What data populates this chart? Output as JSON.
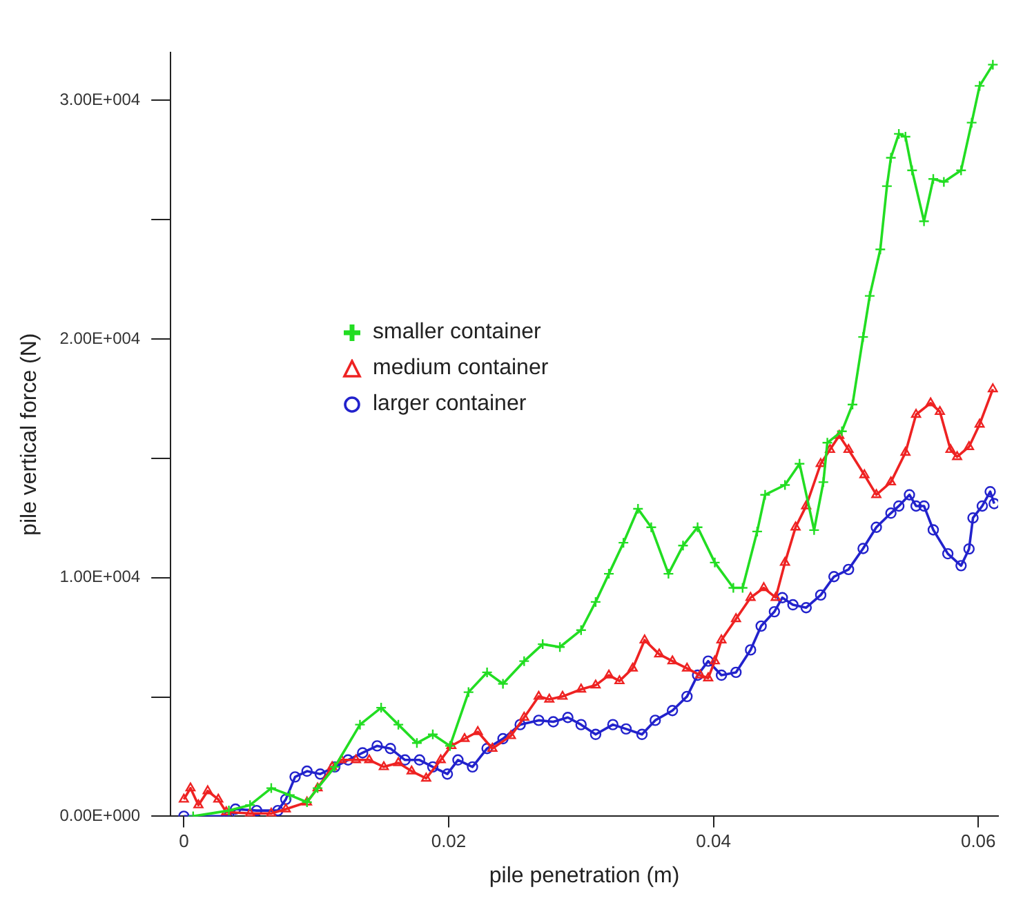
{
  "chart_data": {
    "type": "line",
    "xlabel": "pile penetration (m)",
    "ylabel": "pile vertical force (N)",
    "xlim": [
      -0.001,
      0.0615
    ],
    "xticks": [
      0,
      0.02,
      0.04,
      0.06
    ],
    "ylim": [
      0,
      32000
    ],
    "yticks": [
      {
        "value": 0,
        "label": "0.00E+000"
      },
      {
        "value": 5000,
        "label": null
      },
      {
        "value": 10000,
        "label": "1.00E+004"
      },
      {
        "value": 15000,
        "label": null
      },
      {
        "value": 20000,
        "label": "2.00E+004"
      },
      {
        "value": 25000,
        "label": null
      },
      {
        "value": 30000,
        "label": "3.00E+004"
      }
    ],
    "grid": false,
    "legend": "left",
    "line_style": "solid",
    "series": [
      {
        "name": "smaller container",
        "color": "#22dd22",
        "marker": "cross",
        "x": [
          0.0007,
          0.0034,
          0.005,
          0.0066,
          0.008,
          0.0093,
          0.0101,
          0.0114,
          0.0133,
          0.0149,
          0.0162,
          0.0176,
          0.0188,
          0.0201,
          0.0215,
          0.0229,
          0.0241,
          0.0257,
          0.0271,
          0.0284,
          0.03,
          0.0311,
          0.0321,
          0.0332,
          0.0343,
          0.0353,
          0.0366,
          0.0377,
          0.0388,
          0.0401,
          0.0415,
          0.0422,
          0.0433,
          0.0439,
          0.0454,
          0.0465,
          0.0476,
          0.0483,
          0.0486,
          0.0497,
          0.0505,
          0.0513,
          0.0518,
          0.0526,
          0.0531,
          0.0534,
          0.054,
          0.0545,
          0.055,
          0.0559,
          0.0566,
          0.0574,
          0.0587,
          0.0595,
          0.0601,
          0.0611
        ],
        "values": [
          0,
          240,
          470,
          1180,
          890,
          590,
          1180,
          2070,
          3840,
          4550,
          3840,
          3070,
          3430,
          2950,
          5200,
          6030,
          5550,
          6500,
          7210,
          7090,
          7800,
          8980,
          10160,
          11460,
          12880,
          12110,
          10160,
          11340,
          12110,
          10630,
          9570,
          9570,
          11930,
          13470,
          13880,
          14770,
          11990,
          14000,
          15650,
          16130,
          17250,
          20080,
          21800,
          23750,
          26400,
          27590,
          28590,
          28470,
          27060,
          24930,
          26700,
          26580,
          27060,
          29060,
          30600,
          31490
        ]
      },
      {
        "name": "medium container",
        "color": "#ee2222",
        "marker": "triangle",
        "x": [
          0,
          0.0005,
          0.0011,
          0.0018,
          0.0026,
          0.0032,
          0.005,
          0.0066,
          0.0077,
          0.0093,
          0.0101,
          0.0112,
          0.0119,
          0.013,
          0.014,
          0.0151,
          0.0162,
          0.0172,
          0.0183,
          0.0194,
          0.0202,
          0.0212,
          0.0222,
          0.0233,
          0.0247,
          0.0257,
          0.0268,
          0.0276,
          0.0286,
          0.03,
          0.0311,
          0.0321,
          0.0329,
          0.0339,
          0.0348,
          0.0359,
          0.0369,
          0.038,
          0.039,
          0.0396,
          0.0401,
          0.0406,
          0.0417,
          0.0428,
          0.0438,
          0.0447,
          0.0454,
          0.0462,
          0.047,
          0.0481,
          0.0488,
          0.0495,
          0.0502,
          0.0514,
          0.0523,
          0.0534,
          0.0545,
          0.0553,
          0.0564,
          0.0571,
          0.0579,
          0.0584,
          0.0593,
          0.0601,
          0.0611
        ],
        "values": [
          710,
          1180,
          470,
          1060,
          710,
          180,
          120,
          120,
          300,
          590,
          1180,
          2070,
          2360,
          2360,
          2360,
          2070,
          2240,
          1890,
          1590,
          2360,
          2950,
          3250,
          3540,
          2840,
          3370,
          4140,
          5020,
          4900,
          5020,
          5320,
          5490,
          5910,
          5670,
          6200,
          7380,
          6790,
          6500,
          6200,
          5910,
          5790,
          6500,
          7380,
          8270,
          9160,
          9570,
          9160,
          10630,
          12110,
          13000,
          14770,
          15360,
          15950,
          15360,
          14300,
          13470,
          14000,
          15240,
          16830,
          17310,
          16950,
          15360,
          15060,
          15480,
          16420,
          17900
        ]
      },
      {
        "name": "larger container",
        "color": "#2222cc",
        "marker": "circle",
        "x": [
          0,
          0.0034,
          0.0039,
          0.0055,
          0.0071,
          0.0077,
          0.0084,
          0.0093,
          0.0103,
          0.0114,
          0.0124,
          0.0135,
          0.0146,
          0.0156,
          0.0167,
          0.0178,
          0.0188,
          0.0199,
          0.0207,
          0.0218,
          0.0229,
          0.0241,
          0.0254,
          0.0268,
          0.0279,
          0.029,
          0.03,
          0.0311,
          0.0324,
          0.0334,
          0.0346,
          0.0356,
          0.0369,
          0.038,
          0.0388,
          0.0396,
          0.0406,
          0.0417,
          0.0428,
          0.0436,
          0.0446,
          0.0452,
          0.046,
          0.047,
          0.0481,
          0.0491,
          0.0502,
          0.0513,
          0.0523,
          0.0534,
          0.054,
          0.0548,
          0.0553,
          0.0559,
          0.0566,
          0.0577,
          0.0587,
          0.0593,
          0.0596,
          0.0603,
          0.0609,
          0.0612
        ],
        "values": [
          0,
          0,
          300,
          240,
          240,
          710,
          1650,
          1890,
          1770,
          2070,
          2360,
          2660,
          2950,
          2840,
          2360,
          2360,
          2070,
          1770,
          2360,
          2070,
          2840,
          3250,
          3840,
          4020,
          3960,
          4140,
          3840,
          3430,
          3840,
          3660,
          3430,
          4020,
          4430,
          5020,
          5910,
          6500,
          5910,
          6030,
          6970,
          7970,
          8570,
          9160,
          8860,
          8740,
          9270,
          10040,
          10340,
          11220,
          12110,
          12700,
          13000,
          13470,
          13000,
          13000,
          12000,
          11000,
          10500,
          11200,
          12500,
          13000,
          13600,
          13100
        ]
      }
    ]
  }
}
